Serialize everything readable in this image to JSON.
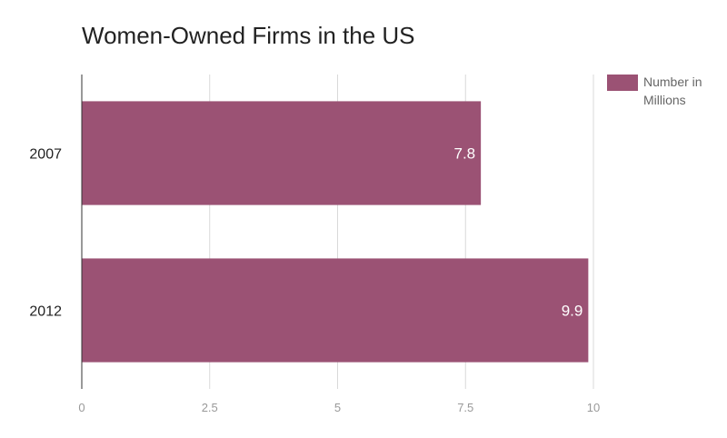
{
  "chart_data": {
    "type": "bar",
    "orientation": "horizontal",
    "title": "Women-Owned Firms in the US",
    "categories": [
      "2007",
      "2012"
    ],
    "series": [
      {
        "name": "Number in Millions",
        "values": [
          7.8,
          9.9
        ],
        "color": "#9b5274"
      }
    ],
    "data_labels": [
      "7.8",
      "9.9"
    ],
    "xlim": [
      0,
      10
    ],
    "xticks": [
      0,
      2.5,
      5,
      7.5,
      10
    ],
    "xtick_labels": [
      "0",
      "2.5",
      "5",
      "7.5",
      "10"
    ],
    "grid": true,
    "legend_position": "top-right",
    "colors": {
      "bar": "#9b5274",
      "grid": "#d9d9d9",
      "axis": "#333333",
      "tick_label": "#999999",
      "category_label": "#222222",
      "data_label": "#ffffff"
    }
  }
}
